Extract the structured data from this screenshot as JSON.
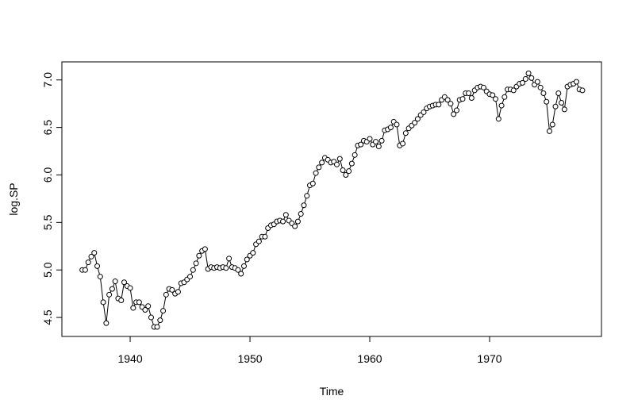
{
  "chart_data": {
    "type": "line",
    "xlabel": "Time",
    "ylabel": "log.SP",
    "color": "#000000",
    "markers": "open-circle",
    "xlim": [
      1934.3,
      1979.34
    ],
    "ylim": [
      4.3,
      7.19
    ],
    "xticks": [
      1940,
      1950,
      1960,
      1970
    ],
    "yticks": [
      {
        "value": 4.5,
        "label": "4.5"
      },
      {
        "value": 5.0,
        "label": "5.0"
      },
      {
        "value": 5.5,
        "label": "5.5"
      },
      {
        "value": 6.0,
        "label": "6.0"
      },
      {
        "value": 6.5,
        "label": "6.5"
      },
      {
        "value": 7.0,
        "label": "7.0"
      }
    ],
    "x": [
      1936,
      1936.25,
      1936.5,
      1936.75,
      1937,
      1937.25,
      1937.5,
      1937.75,
      1938,
      1938.25,
      1938.5,
      1938.75,
      1939,
      1939.25,
      1939.5,
      1939.75,
      1940,
      1940.25,
      1940.5,
      1940.75,
      1941,
      1941.25,
      1941.5,
      1941.75,
      1942,
      1942.25,
      1942.5,
      1942.75,
      1943,
      1943.25,
      1943.5,
      1943.75,
      1944,
      1944.25,
      1944.5,
      1944.75,
      1945,
      1945.25,
      1945.5,
      1945.75,
      1946,
      1946.25,
      1946.5,
      1946.75,
      1947,
      1947.25,
      1947.5,
      1947.75,
      1948,
      1948.25,
      1948.5,
      1948.75,
      1949,
      1949.25,
      1949.5,
      1949.75,
      1950,
      1950.25,
      1950.5,
      1950.75,
      1951,
      1951.25,
      1951.5,
      1951.75,
      1952,
      1952.25,
      1952.5,
      1952.75,
      1953,
      1953.25,
      1953.5,
      1953.75,
      1954,
      1954.25,
      1954.5,
      1954.75,
      1955,
      1955.25,
      1955.5,
      1955.75,
      1956,
      1956.25,
      1956.5,
      1956.75,
      1957,
      1957.25,
      1957.5,
      1957.75,
      1958,
      1958.25,
      1958.5,
      1958.75,
      1959,
      1959.25,
      1959.5,
      1959.75,
      1960,
      1960.25,
      1960.5,
      1960.75,
      1961,
      1961.25,
      1961.5,
      1961.75,
      1962,
      1962.25,
      1962.5,
      1962.75,
      1963,
      1963.25,
      1963.5,
      1963.75,
      1964,
      1964.25,
      1964.5,
      1964.75,
      1965,
      1965.25,
      1965.5,
      1965.75,
      1966,
      1966.25,
      1966.5,
      1966.75,
      1967,
      1967.25,
      1967.5,
      1967.75,
      1968,
      1968.25,
      1968.5,
      1968.75,
      1969,
      1969.25,
      1969.5,
      1969.75,
      1970,
      1970.25,
      1970.5,
      1970.75,
      1971,
      1971.25,
      1971.5,
      1971.75,
      1972,
      1972.25,
      1972.5,
      1972.75,
      1973,
      1973.25,
      1973.5,
      1973.75,
      1974,
      1974.25,
      1974.5,
      1974.75,
      1975,
      1975.25,
      1975.5,
      1975.75,
      1976,
      1976.25,
      1976.5,
      1976.75,
      1977,
      1977.25,
      1977.5,
      1977.75
    ],
    "values": [
      5.0,
      5.0,
      5.08,
      5.14,
      5.18,
      5.04,
      4.93,
      4.66,
      4.44,
      4.74,
      4.8,
      4.88,
      4.7,
      4.68,
      4.87,
      4.83,
      4.81,
      4.6,
      4.66,
      4.66,
      4.61,
      4.58,
      4.62,
      4.5,
      4.4,
      4.4,
      4.47,
      4.57,
      4.74,
      4.8,
      4.79,
      4.75,
      4.77,
      4.86,
      4.87,
      4.9,
      4.93,
      5.0,
      5.07,
      5.15,
      5.2,
      5.22,
      5.01,
      5.03,
      5.02,
      5.03,
      5.02,
      5.03,
      5.02,
      5.12,
      5.03,
      5.02,
      5.0,
      4.96,
      5.04,
      5.11,
      5.15,
      5.18,
      5.27,
      5.3,
      5.35,
      5.35,
      5.44,
      5.47,
      5.48,
      5.51,
      5.52,
      5.51,
      5.58,
      5.52,
      5.49,
      5.46,
      5.51,
      5.59,
      5.68,
      5.78,
      5.89,
      5.91,
      6.02,
      6.08,
      6.13,
      6.18,
      6.16,
      6.13,
      6.14,
      6.11,
      6.17,
      6.05,
      6.0,
      6.04,
      6.12,
      6.21,
      6.31,
      6.32,
      6.36,
      6.35,
      6.38,
      6.32,
      6.35,
      6.3,
      6.36,
      6.47,
      6.48,
      6.5,
      6.56,
      6.53,
      6.31,
      6.33,
      6.44,
      6.49,
      6.52,
      6.55,
      6.59,
      6.63,
      6.66,
      6.7,
      6.72,
      6.73,
      6.74,
      6.74,
      6.79,
      6.82,
      6.79,
      6.75,
      6.64,
      6.68,
      6.79,
      6.8,
      6.86,
      6.86,
      6.81,
      6.89,
      6.92,
      6.93,
      6.92,
      6.88,
      6.85,
      6.84,
      6.8,
      6.59,
      6.73,
      6.82,
      6.9,
      6.9,
      6.89,
      6.93,
      6.96,
      6.97,
      7.01,
      7.07,
      7.02,
      6.95,
      6.98,
      6.92,
      6.86,
      6.77,
      6.46,
      6.53,
      6.72,
      6.86,
      6.76,
      6.69,
      6.93,
      6.95,
      6.96,
      6.98,
      6.9,
      6.89
    ]
  }
}
